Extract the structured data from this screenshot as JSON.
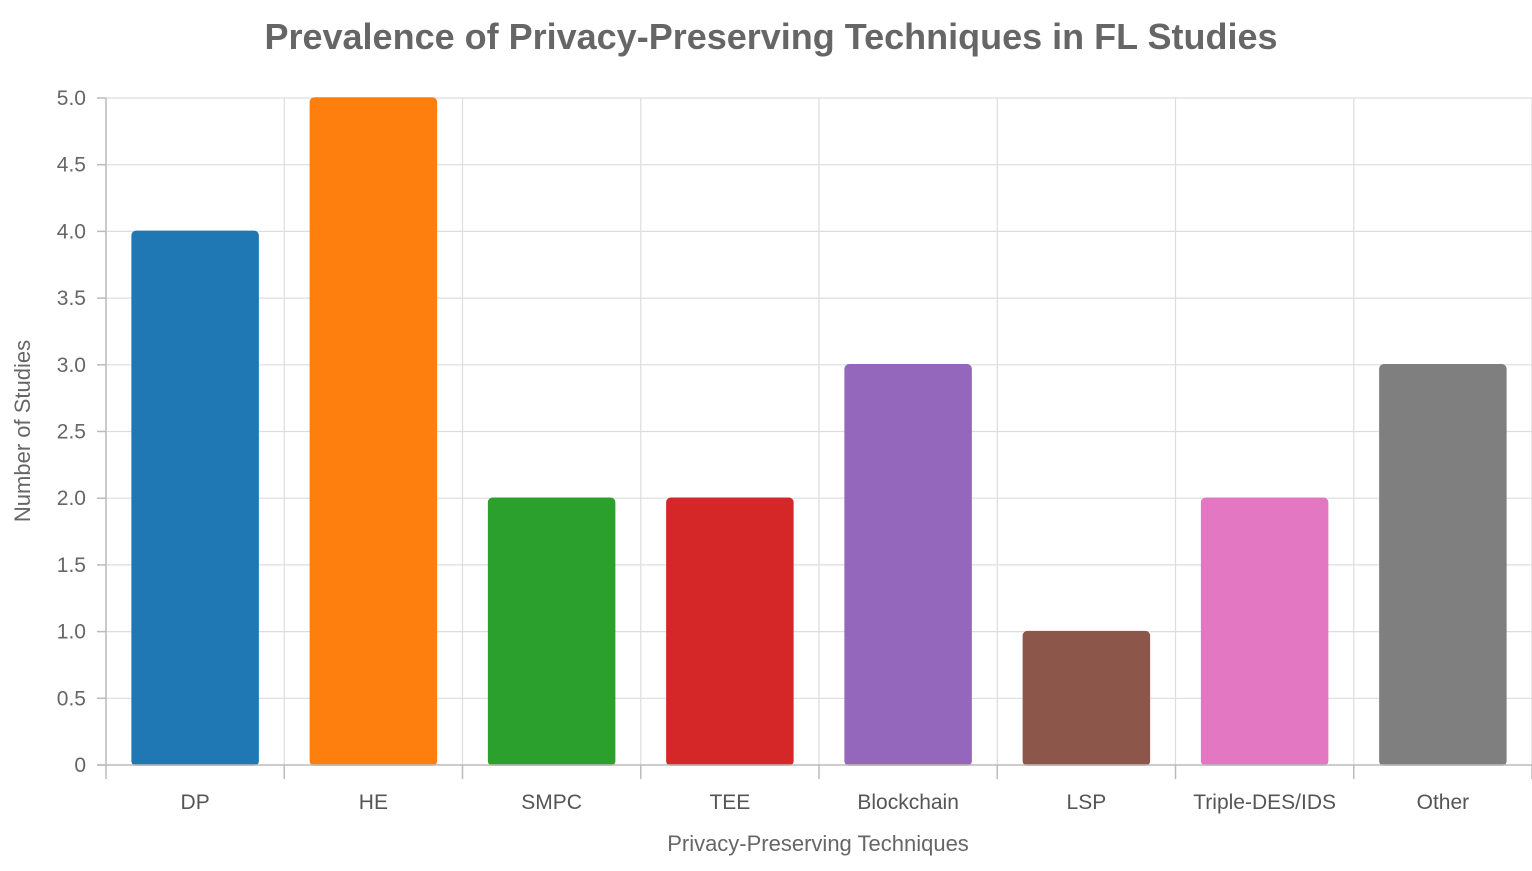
{
  "chart_data": {
    "type": "bar",
    "title": "Prevalence of Privacy-Preserving Techniques in FL Studies",
    "xlabel": "Privacy-Preserving Techniques",
    "ylabel": "Number of Studies",
    "categories": [
      "DP",
      "HE",
      "SMPC",
      "TEE",
      "Blockchain",
      "LSP",
      "Triple-DES/IDS",
      "Other"
    ],
    "values": [
      4,
      5,
      2,
      2,
      3,
      1,
      2,
      3
    ],
    "colors": [
      "#1f77b4",
      "#ff7f0e",
      "#2ca02c",
      "#d62728",
      "#9467bd",
      "#8c564b",
      "#e377c2",
      "#7f7f7f"
    ],
    "ylim": [
      0,
      5
    ],
    "yticks": [
      "0",
      "0.5",
      "1.0",
      "1.5",
      "2.0",
      "2.5",
      "3.0",
      "3.5",
      "4.0",
      "4.5",
      "5.0"
    ],
    "ytick_values": [
      0,
      0.5,
      1,
      1.5,
      2,
      2.5,
      3,
      3.5,
      4,
      4.5,
      5
    ],
    "grid": true,
    "legend": "none"
  }
}
